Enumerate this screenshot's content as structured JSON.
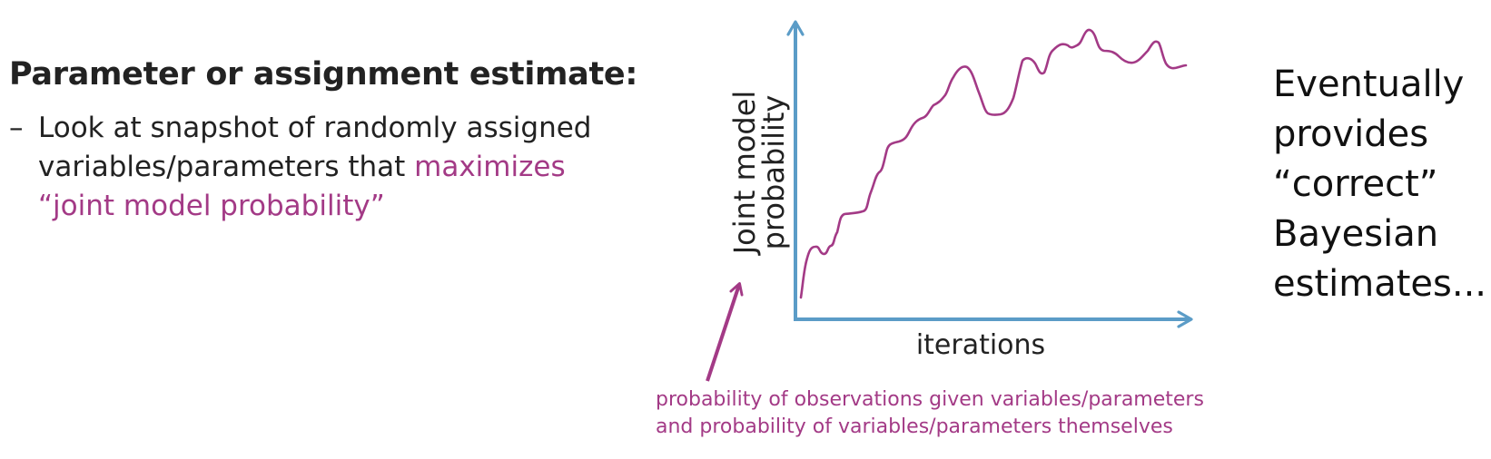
{
  "heading": "Parameter or assignment estimate:",
  "bullet": {
    "dash": "–",
    "line1": "Look at snapshot of randomly assigned",
    "line2_plain": "variables/parameters that ",
    "line2_accent": "maximizes",
    "line3_accent": "“joint model probability”"
  },
  "chart": {
    "ylabel_line1": "Joint model",
    "ylabel_line2": "probability",
    "xlabel": "iterations"
  },
  "annotation": {
    "line1": "probability of observations given variables/parameters",
    "line2": "and probability of variables/parameters themselves"
  },
  "conclusion": {
    "line1": "Eventually",
    "line2": "provides",
    "line3": "“correct”",
    "line4": "Bayesian",
    "line5": "estimates..."
  },
  "colors": {
    "axis": "#5b9cc7",
    "curve": "#a33a86",
    "accent": "#a33a86",
    "text": "#222222"
  }
}
